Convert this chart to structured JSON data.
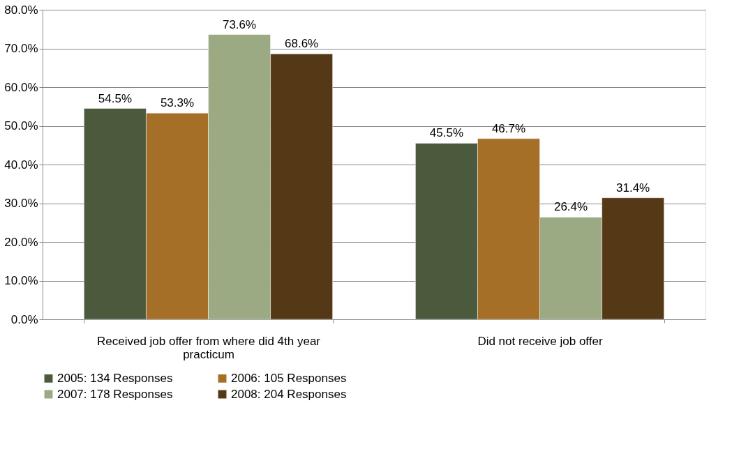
{
  "chart_data": {
    "type": "bar",
    "categories": [
      "Received job offer from where did 4th year practicum",
      "Did not receive job offer"
    ],
    "series": [
      {
        "name": "2005: 134 Responses",
        "color": "#4b5a3c",
        "values": [
          54.5,
          45.5
        ]
      },
      {
        "name": "2006: 105 Responses",
        "color": "#a66f28",
        "values": [
          53.3,
          46.7
        ]
      },
      {
        "name": "2007: 178 Responses",
        "color": "#9caa84",
        "values": [
          73.6,
          26.4
        ]
      },
      {
        "name": "2008: 204 Responses",
        "color": "#553816",
        "values": [
          68.6,
          31.4
        ]
      }
    ],
    "value_labels": [
      [
        "54.5%",
        "45.5%"
      ],
      [
        "53.3%",
        "46.7%"
      ],
      [
        "73.6%",
        "26.4%"
      ],
      [
        "68.6%",
        "31.4%"
      ]
    ],
    "ylim": [
      0,
      80
    ],
    "yticks": [
      {
        "value": 0,
        "label": "0.0%"
      },
      {
        "value": 10,
        "label": "10.0%"
      },
      {
        "value": 20,
        "label": "20.0%"
      },
      {
        "value": 30,
        "label": "30.0%"
      },
      {
        "value": 40,
        "label": "40.0%"
      },
      {
        "value": 50,
        "label": "50.0%"
      },
      {
        "value": 60,
        "label": "60.0%"
      },
      {
        "value": 70,
        "label": "70.0%"
      },
      {
        "value": 80,
        "label": "80.0%"
      }
    ],
    "grid": "y",
    "legend": "bottom"
  }
}
